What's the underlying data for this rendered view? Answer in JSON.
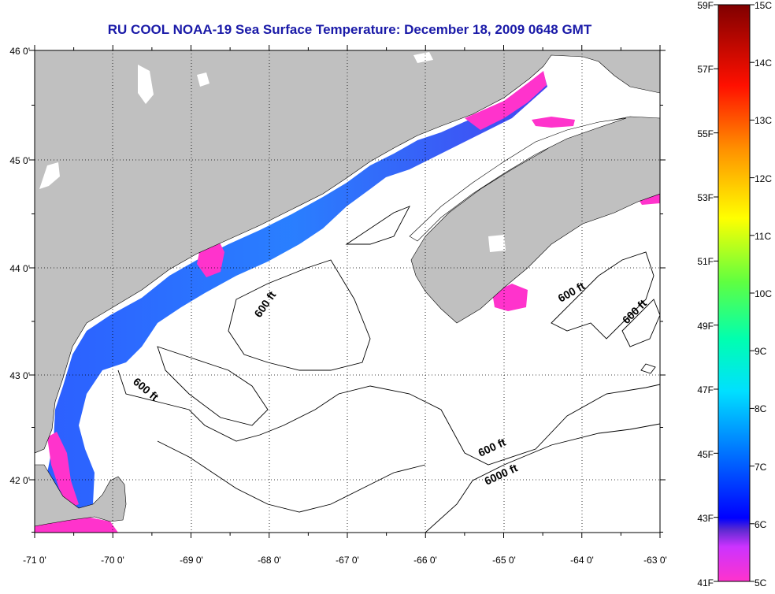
{
  "title": "RU COOL  NOAA-19  Sea Surface Temperature:  December 18, 2009 0648 GMT",
  "map": {
    "lon_ticks": [
      "-71 0'",
      "-70 0'",
      "-69 0'",
      "-68 0'",
      "-67 0'",
      "-66 0'",
      "-65 0'",
      "-64 0'",
      "-63 0'"
    ],
    "lat_ticks": [
      "46 0'",
      "45 0'",
      "44 0'",
      "43 0'",
      "42 0'"
    ],
    "contour_labels": [
      "600 ft",
      "600 ft",
      "600 ft",
      "600 ft",
      "600 ft",
      "6000 ft"
    ],
    "colors": {
      "land": "#c0c0c0",
      "ocean_nodata": "#ffffff",
      "contour": "#000000"
    }
  },
  "colorbar": {
    "fahrenheit": [
      "59F",
      "57F",
      "55F",
      "53F",
      "51F",
      "49F",
      "47F",
      "45F",
      "43F",
      "41F"
    ],
    "celsius": [
      "15C",
      "14C",
      "13C",
      "12C",
      "11C",
      "10C",
      "9C",
      "8C",
      "7C",
      "6C",
      "5C"
    ],
    "gradient": [
      "#ff33cc",
      "#9933ff",
      "#0000ff",
      "#0080ff",
      "#00ffff",
      "#00ff80",
      "#80ff00",
      "#ffff00",
      "#ff8000",
      "#ff0000",
      "#800000"
    ]
  }
}
